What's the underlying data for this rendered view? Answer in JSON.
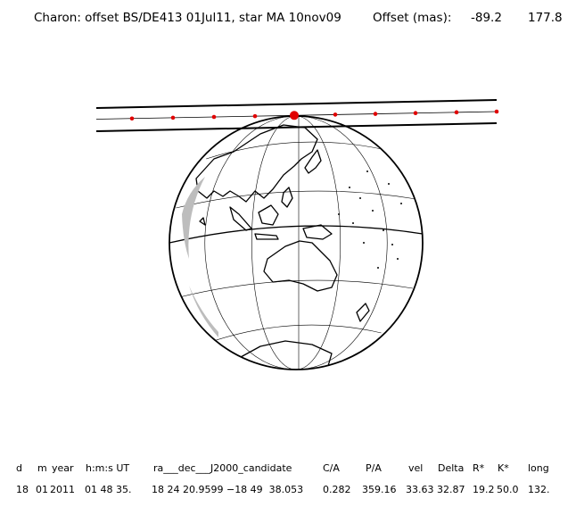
{
  "title": "Charon: offset BS/DE413 01Jul11, star MA 10nov09",
  "offset_label": "Offset (mas):",
  "offset_values": [
    "-89.2",
    "177.8"
  ],
  "table": {
    "headers": [
      "d",
      "m",
      "year",
      "h:m:s UT",
      "ra___dec___J2000_candidate",
      "C/A",
      "P/A",
      "vel",
      "Delta",
      "R*",
      "K*",
      "long"
    ],
    "values": [
      "18",
      "01",
      "2011",
      "01 48 35.",
      "18 24 20.9599 −18 49  38.053",
      "0.282",
      "359.16",
      "33.63",
      "32.87",
      "19.2",
      "50.0",
      "132."
    ]
  },
  "map": {
    "line_color": "#000000",
    "track_color": "#e00000",
    "shading_color": "#bdbdbd"
  }
}
